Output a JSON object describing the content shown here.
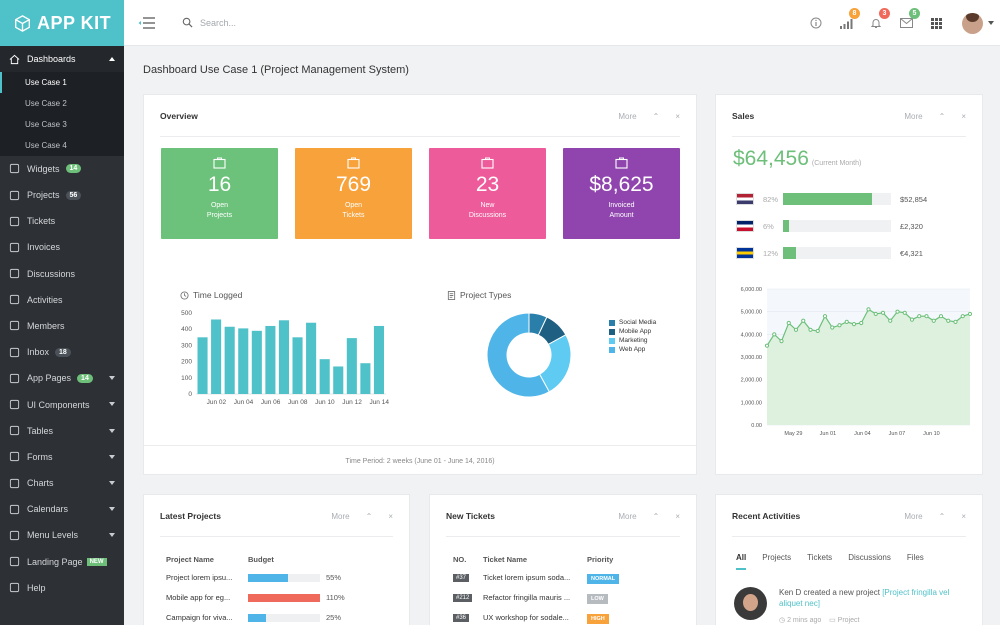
{
  "brand": {
    "name": "APP KIT"
  },
  "topbar": {
    "search_placeholder": "Search...",
    "counts": {
      "stats": "8",
      "alerts": "3",
      "mail": "5"
    }
  },
  "sidebar": {
    "dashboards": {
      "label": "Dashboards",
      "subitems": [
        "Use Case 1",
        "Use Case 2",
        "Use Case 3",
        "Use Case 4"
      ]
    },
    "items": [
      {
        "label": "Widgets",
        "badge": "14",
        "badge_color": "green"
      },
      {
        "label": "Projects",
        "badge": "56"
      },
      {
        "label": "Tickets"
      },
      {
        "label": "Invoices"
      },
      {
        "label": "Discussions"
      },
      {
        "label": "Activities"
      },
      {
        "label": "Members"
      },
      {
        "label": "Inbox",
        "badge": "18"
      },
      {
        "label": "App Pages",
        "badge": "14",
        "badge_color": "green",
        "caret": true
      },
      {
        "label": "UI Components",
        "caret": true
      },
      {
        "label": "Tables",
        "caret": true
      },
      {
        "label": "Forms",
        "caret": true
      },
      {
        "label": "Charts",
        "caret": true
      },
      {
        "label": "Calendars",
        "caret": true
      },
      {
        "label": "Menu Levels",
        "caret": true
      },
      {
        "label": "Landing Page",
        "tag": "NEW"
      },
      {
        "label": "Help"
      }
    ]
  },
  "page": {
    "title": "Dashboard Use Case 1 (Project Management System)"
  },
  "common": {
    "more": "More",
    "up": "⌃",
    "close": "×"
  },
  "overview": {
    "title": "Overview",
    "tiles": [
      {
        "value": "16",
        "label": "Open\nProjects",
        "color": "#6dc27b",
        "icon": "briefcase-icon"
      },
      {
        "value": "769",
        "label": "Open\nTickets",
        "color": "#f7a23b",
        "icon": "checkbox-icon"
      },
      {
        "value": "23",
        "label": "New\nDiscussions",
        "color": "#ee5b9a",
        "icon": "chat-icon"
      },
      {
        "value": "$8,625",
        "label": "Invoiced\nAmount",
        "color": "#8f45ad",
        "icon": "invoice-icon"
      }
    ],
    "time_logged_title": "Time Logged",
    "project_types_title": "Project Types",
    "time_period": "Time Period: 2 weeks (June 01 - June 14, 2016)"
  },
  "sales": {
    "title": "Sales",
    "amount": "$64,456",
    "amount_note": "(Current Month)",
    "rows": [
      {
        "flag": "us-flag-icon",
        "pct": "82%",
        "fill": 0.82,
        "amount": "$52,854"
      },
      {
        "flag": "uk-flag-icon",
        "pct": "6%",
        "fill": 0.06,
        "amount": "£2,320"
      },
      {
        "flag": "eu-flag-icon",
        "pct": "12%",
        "fill": 0.12,
        "amount": "€4,321"
      }
    ]
  },
  "latest_projects": {
    "title": "Latest Projects",
    "headers": [
      "Project Name",
      "Budget"
    ],
    "rows": [
      {
        "name": "Project lorem ipsu...",
        "fill": 0.55,
        "pct": "55%",
        "color": "#4fb5e8"
      },
      {
        "name": "Mobile app for eg...",
        "fill": 1.0,
        "pct": "110%",
        "color": "#ef6a5a"
      },
      {
        "name": "Campaign for viva...",
        "fill": 0.25,
        "pct": "25%",
        "color": "#4fb5e8"
      }
    ]
  },
  "new_tickets": {
    "title": "New Tickets",
    "headers": [
      "NO.",
      "Ticket Name",
      "Priority"
    ],
    "rows": [
      {
        "no": "#37",
        "name": "Ticket lorem ipsum soda...",
        "priority": "NORMAL",
        "color": "#4fb5e8"
      },
      {
        "no": "#212",
        "name": "Refactor fringilla mauris ...",
        "priority": "LOW",
        "color": "#b6bbc0"
      },
      {
        "no": "#36",
        "name": "UX workshop for sodale...",
        "priority": "HIGH",
        "color": "#f7a23b"
      }
    ]
  },
  "recent_activities": {
    "title": "Recent Activities",
    "tabs": [
      "All",
      "Projects",
      "Tickets",
      "Discussions",
      "Files"
    ],
    "item": {
      "user": "Ken D",
      "action": "created a new project",
      "link": "[Project fringilla vel aliquet nec]",
      "time": "2 mins ago",
      "category": "Project"
    }
  },
  "chart_data": [
    {
      "type": "bar",
      "title": "Time Logged",
      "categories": [
        "Jun 01",
        "Jun 02",
        "Jun 03",
        "Jun 04",
        "Jun 05",
        "Jun 06",
        "Jun 07",
        "Jun 08",
        "Jun 09",
        "Jun 10",
        "Jun 11",
        "Jun 12",
        "Jun 13",
        "Jun 14"
      ],
      "tick_labels": [
        "Jun 02",
        "Jun 04",
        "Jun 06",
        "Jun 08",
        "Jun 10",
        "Jun 12",
        "Jun 14"
      ],
      "values": [
        350,
        460,
        415,
        405,
        390,
        420,
        455,
        350,
        440,
        215,
        170,
        345,
        190,
        420
      ],
      "ylim": [
        0,
        500
      ],
      "yticks": [
        0,
        100,
        200,
        300,
        400,
        500
      ],
      "color": "#4fc1c9"
    },
    {
      "type": "pie",
      "title": "Project Types",
      "donut": true,
      "labels": [
        "Social Media",
        "Mobile App",
        "Marketing",
        "Web App"
      ],
      "values": [
        7,
        10,
        25,
        58
      ],
      "colors": [
        "#2a7faa",
        "#1f5f82",
        "#5fcaf2",
        "#4fb5e8"
      ]
    },
    {
      "type": "area",
      "title": "Sales",
      "x_tick_labels": [
        "May 29",
        "Jun 01",
        "Jun 04",
        "Jun 07",
        "Jun 10"
      ],
      "values": [
        3500,
        4000,
        3700,
        4500,
        4200,
        4600,
        4200,
        4150,
        4800,
        4300,
        4400,
        4550,
        4450,
        4500,
        5100,
        4900,
        4950,
        4600,
        5000,
        4950,
        4650,
        4800,
        4800,
        4600,
        4800,
        4600,
        4550,
        4800,
        4900
      ],
      "ylim": [
        0,
        6000
      ],
      "yticks": [
        "0.00",
        "1,000.00",
        "2,000.00",
        "3,000.00",
        "4,000.00",
        "5,000.00",
        "6,000.00"
      ],
      "color": "#6dbf7a"
    }
  ]
}
